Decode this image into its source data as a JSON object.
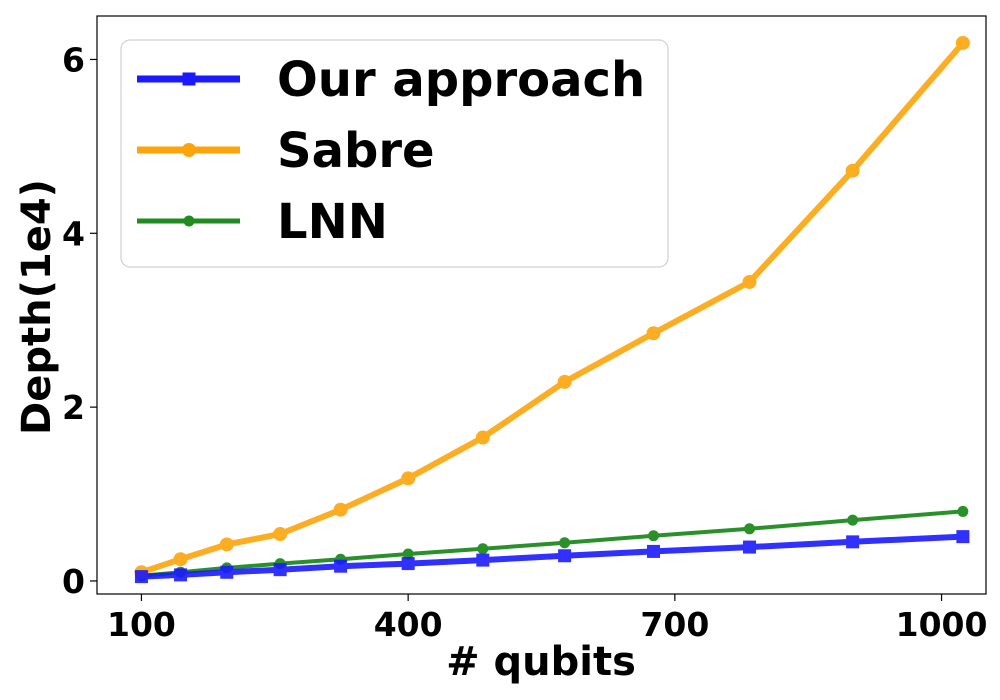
{
  "chart_data": {
    "type": "line",
    "xlabel": "# qubits",
    "ylabel": "Depth(1e4)",
    "xlim": [
      50,
      1050
    ],
    "ylim": [
      -0.15,
      6.5
    ],
    "x_ticks": [
      100,
      400,
      700,
      1000
    ],
    "x_tick_labels": [
      "100",
      "400",
      "700",
      "1000"
    ],
    "y_ticks": [
      0,
      2,
      4,
      6
    ],
    "y_tick_labels": [
      "0",
      "2",
      "4",
      "6"
    ],
    "legend_position": "top-left",
    "grid": false,
    "x": [
      100,
      144,
      196,
      256,
      324,
      400,
      484,
      576,
      676,
      784,
      900,
      1024
    ],
    "series": [
      {
        "name": "Our approach",
        "color": "#1a1aff",
        "marker": "square",
        "values": [
          0.05,
          0.07,
          0.1,
          0.13,
          0.17,
          0.2,
          0.24,
          0.29,
          0.34,
          0.39,
          0.45,
          0.51
        ]
      },
      {
        "name": "Sabre",
        "color": "#fca50a",
        "marker": "circle",
        "values": [
          0.1,
          0.25,
          0.42,
          0.54,
          0.82,
          1.18,
          1.65,
          2.29,
          2.85,
          3.44,
          4.72,
          6.19
        ]
      },
      {
        "name": "LNN",
        "color": "#1f8c1f",
        "marker": "circle",
        "values": [
          0.06,
          0.1,
          0.15,
          0.2,
          0.25,
          0.31,
          0.37,
          0.44,
          0.52,
          0.6,
          0.7,
          0.8
        ]
      }
    ]
  }
}
